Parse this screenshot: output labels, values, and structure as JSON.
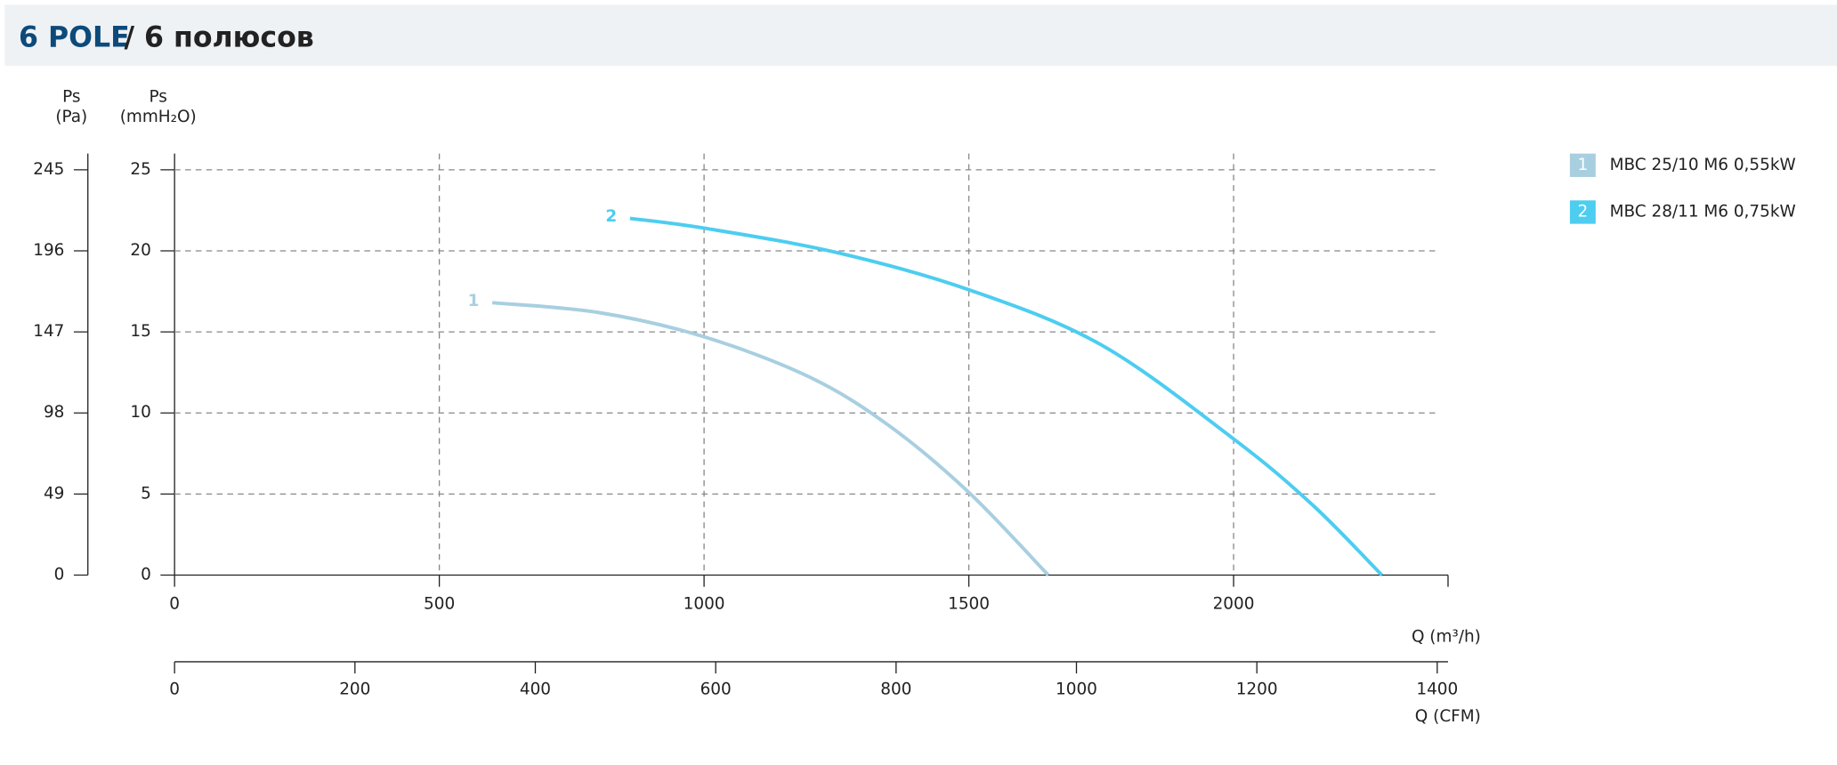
{
  "header": {
    "title": "6 POLE",
    "subtitle": "/ 6 полюсов"
  },
  "chart_data": {
    "type": "line",
    "y_label": "Ps",
    "y_unit": "(mmH₂O)",
    "y2_label": "Ps",
    "y2_unit": "(Pa)",
    "x_label": "Q (m³/h)",
    "x2_label": "Q (CFM)",
    "xlim": [
      0,
      2405
    ],
    "xticks": [
      0,
      500,
      1000,
      1500,
      2000
    ],
    "x2lim": [
      0,
      1412
    ],
    "x2ticks": [
      0,
      200,
      400,
      600,
      800,
      1000,
      1200,
      1400
    ],
    "ylim": [
      0,
      26
    ],
    "yticks": [
      0,
      5,
      10,
      15,
      20,
      25
    ],
    "y2lim": [
      0,
      254.8
    ],
    "y2ticks": [
      0,
      49,
      98,
      147,
      196,
      245
    ],
    "grid": true,
    "legend": "right",
    "series": [
      {
        "label": "1",
        "name": "MBC 25/10 M6 0,55kW",
        "color": "#a8cfe0",
        "x": [
          600,
          800,
          1000,
          1200,
          1350,
          1500,
          1650
        ],
        "values": [
          16.8,
          16.2,
          14.7,
          12.2,
          9.2,
          5.1,
          0
        ]
      },
      {
        "label": "2",
        "name": "MBC 28/11 M6 0,75kW",
        "color": "#4dcdf0",
        "x": [
          860,
          1000,
          1250,
          1500,
          1750,
          2000,
          2150,
          2280
        ],
        "values": [
          22,
          21.4,
          19.9,
          17.6,
          14.2,
          8.4,
          4.3,
          0
        ]
      }
    ]
  }
}
